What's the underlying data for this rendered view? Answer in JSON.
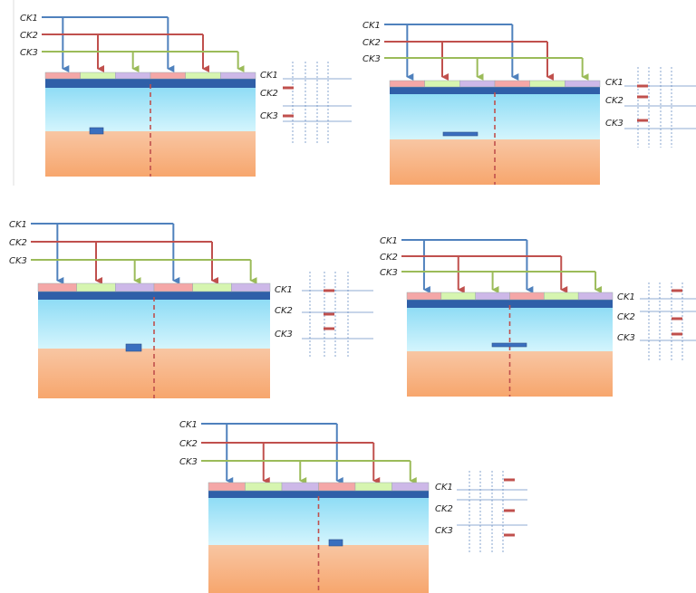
{
  "colors": {
    "ck1": "#4f81bd",
    "ck2": "#c0504d",
    "ck3": "#9bbb59",
    "electrode_ck1": "#f4a7a7",
    "electrode_ck2": "#d6f5b0",
    "electrode_ck3": "#cdb8e8",
    "oxide_top": "#2f5fa8",
    "channel": "#b6ecfb",
    "substrate": "#f9b98a",
    "divider": "#c0504d",
    "charge": "#3a6fbf",
    "timing_line": "#6a8fc4"
  },
  "clocks": [
    {
      "id": "ck1",
      "label": "CK1"
    },
    {
      "id": "ck2",
      "label": "CK2"
    },
    {
      "id": "ck3",
      "label": "CK3"
    }
  ],
  "panels": [
    {
      "name": "phase-1",
      "clocks": [
        "CK1",
        "CK2",
        "CK3"
      ],
      "timing": [
        "CK1",
        "CK2",
        "CK3"
      ]
    },
    {
      "name": "phase-2",
      "clocks": [
        "CK1",
        "CK2",
        "CK3"
      ],
      "timing": [
        "CK1",
        "CK2",
        "CK3"
      ]
    },
    {
      "name": "phase-3",
      "clocks": [
        "CK1",
        "CK2",
        "CK3"
      ],
      "timing": [
        "CK1",
        "CK2",
        "CK3"
      ]
    },
    {
      "name": "phase-4",
      "clocks": [
        "CK1",
        "CK2",
        "CK3"
      ],
      "timing": [
        "CK1",
        "CK2",
        "CK3"
      ]
    },
    {
      "name": "phase-5",
      "clocks": [
        "CK1",
        "CK2",
        "CK3"
      ],
      "timing": [
        "CK1",
        "CK2",
        "CK3"
      ]
    }
  ]
}
